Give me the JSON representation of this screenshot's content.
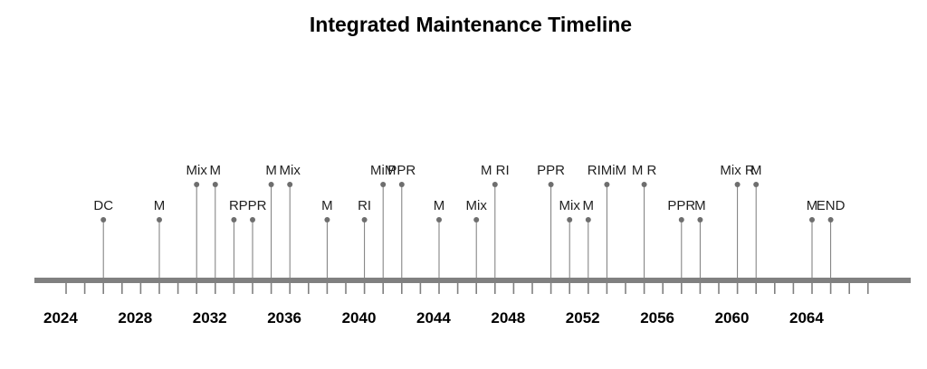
{
  "chart_data": {
    "type": "timeline",
    "title": "Integrated Maintenance Timeline",
    "x_axis": {
      "min": 2024,
      "max": 2067,
      "tick_labels": [
        "2024",
        "2028",
        "2032",
        "2036",
        "2040",
        "2044",
        "2048",
        "2052",
        "2056",
        "2060",
        "2064"
      ]
    },
    "events": [
      {
        "year": 2026,
        "label": "DC",
        "level": 1
      },
      {
        "year": 2029,
        "label": "M",
        "level": 1
      },
      {
        "year": 2031,
        "label": "Mix",
        "level": 2
      },
      {
        "year": 2032,
        "label": "M",
        "level": 2
      },
      {
        "year": 2033,
        "label": "R",
        "level": 1
      },
      {
        "year": 2034,
        "label": "PPR",
        "level": 1
      },
      {
        "year": 2035,
        "label": "M",
        "level": 2
      },
      {
        "year": 2036,
        "label": "Mix",
        "level": 2
      },
      {
        "year": 2038,
        "label": "M",
        "level": 1
      },
      {
        "year": 2040,
        "label": "RI",
        "level": 1
      },
      {
        "year": 2041,
        "label": "MiM",
        "level": 2
      },
      {
        "year": 2042,
        "label": "PPR",
        "level": 2
      },
      {
        "year": 2044,
        "label": "M",
        "level": 1
      },
      {
        "year": 2046,
        "label": "Mix",
        "level": 1
      },
      {
        "year": 2047,
        "label": "M RI",
        "level": 2
      },
      {
        "year": 2050,
        "label": "PPR",
        "level": 2
      },
      {
        "year": 2051,
        "label": "Mix",
        "level": 1
      },
      {
        "year": 2052,
        "label": "M",
        "level": 1
      },
      {
        "year": 2053,
        "label": "RIMiM",
        "level": 2
      },
      {
        "year": 2055,
        "label": "M R",
        "level": 2
      },
      {
        "year": 2057,
        "label": "PPR",
        "level": 1
      },
      {
        "year": 2058,
        "label": "M",
        "level": 1
      },
      {
        "year": 2060,
        "label": "Mix R",
        "level": 2
      },
      {
        "year": 2061,
        "label": "M",
        "level": 2
      },
      {
        "year": 2064,
        "label": "M",
        "level": 1
      },
      {
        "year": 2065,
        "label": "END",
        "level": 1
      }
    ],
    "colors": {
      "axis": "#808080",
      "stem": "#7a7a7a",
      "point": "#6e6e6e",
      "title": "#000000"
    },
    "grid": false,
    "legend": "none"
  }
}
